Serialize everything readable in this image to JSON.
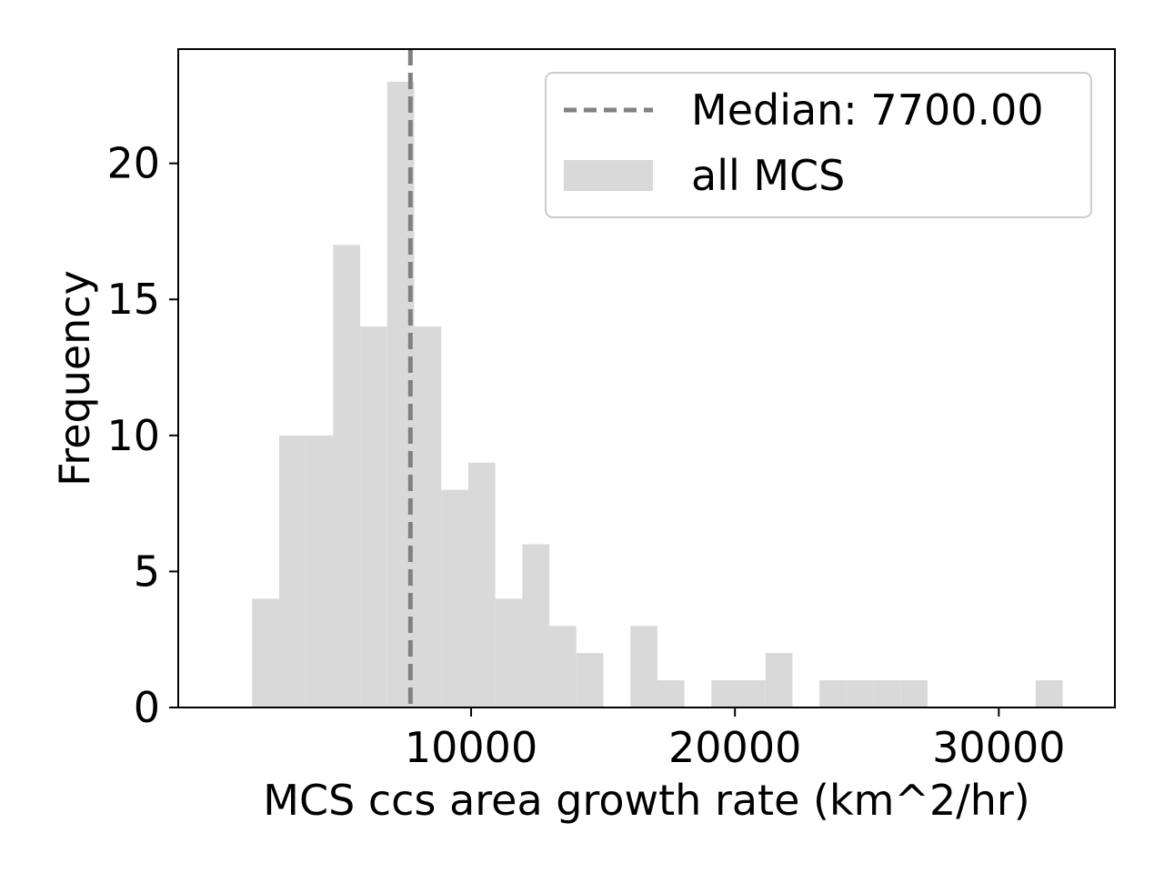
{
  "chart_data": {
    "type": "bar",
    "subtype": "histogram",
    "xlabel": "MCS ccs area growth rate (km^2/hr)",
    "ylabel": "Frequency",
    "xlim": [
      -1100,
      34400
    ],
    "ylim": [
      0,
      24.2
    ],
    "bin_width": 1024,
    "bins": [
      {
        "x0": 1700,
        "x1": 2724,
        "count": 4
      },
      {
        "x0": 2724,
        "x1": 3748,
        "count": 10
      },
      {
        "x0": 3748,
        "x1": 4772,
        "count": 10
      },
      {
        "x0": 4772,
        "x1": 5796,
        "count": 17
      },
      {
        "x0": 5796,
        "x1": 6820,
        "count": 14
      },
      {
        "x0": 6820,
        "x1": 7844,
        "count": 23
      },
      {
        "x0": 7844,
        "x1": 8868,
        "count": 14
      },
      {
        "x0": 8868,
        "x1": 9892,
        "count": 8
      },
      {
        "x0": 9892,
        "x1": 10916,
        "count": 9
      },
      {
        "x0": 10916,
        "x1": 11940,
        "count": 4
      },
      {
        "x0": 11940,
        "x1": 12964,
        "count": 6
      },
      {
        "x0": 12964,
        "x1": 13988,
        "count": 3
      },
      {
        "x0": 13988,
        "x1": 15012,
        "count": 2
      },
      {
        "x0": 15012,
        "x1": 16036,
        "count": 0
      },
      {
        "x0": 16036,
        "x1": 17060,
        "count": 3
      },
      {
        "x0": 17060,
        "x1": 18084,
        "count": 1
      },
      {
        "x0": 18084,
        "x1": 19108,
        "count": 0
      },
      {
        "x0": 19108,
        "x1": 20132,
        "count": 1
      },
      {
        "x0": 20132,
        "x1": 21156,
        "count": 1
      },
      {
        "x0": 21156,
        "x1": 22180,
        "count": 2
      },
      {
        "x0": 22180,
        "x1": 23204,
        "count": 0
      },
      {
        "x0": 23204,
        "x1": 24228,
        "count": 1
      },
      {
        "x0": 24228,
        "x1": 25252,
        "count": 1
      },
      {
        "x0": 25252,
        "x1": 26276,
        "count": 1
      },
      {
        "x0": 26276,
        "x1": 27300,
        "count": 1
      },
      {
        "x0": 27300,
        "x1": 28324,
        "count": 0
      },
      {
        "x0": 28324,
        "x1": 29348,
        "count": 0
      },
      {
        "x0": 29348,
        "x1": 30372,
        "count": 0
      },
      {
        "x0": 30372,
        "x1": 31396,
        "count": 0
      },
      {
        "x0": 31396,
        "x1": 32420,
        "count": 1
      }
    ],
    "median": 7700,
    "xticks": [
      10000,
      20000,
      30000
    ],
    "xtick_labels": [
      "10000",
      "20000",
      "30000"
    ],
    "yticks": [
      0,
      5,
      10,
      15,
      20
    ],
    "ytick_labels": [
      "0",
      "5",
      "10",
      "15",
      "20"
    ],
    "legend": {
      "placement": "top-right",
      "entries": [
        {
          "label": "Median: 7700.00",
          "style": "dashed-line"
        },
        {
          "label": "all MCS",
          "style": "patch"
        }
      ]
    },
    "colors": {
      "bars": "#d9d9d9",
      "median_line": "#808080",
      "axes": "#000000",
      "legend_border": "#cccccc"
    },
    "grid": false
  }
}
